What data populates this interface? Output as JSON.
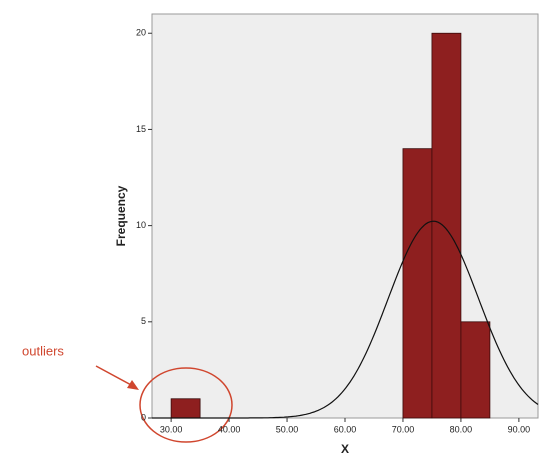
{
  "chart_data": {
    "type": "histogram",
    "x_label": "X",
    "y_label": "Frequency",
    "bins": [
      30,
      35,
      40,
      45,
      50,
      55,
      60,
      65,
      70,
      75,
      80,
      85
    ],
    "values": [
      1,
      0,
      0,
      0,
      0,
      0,
      0,
      0,
      14,
      20,
      5
    ],
    "color": "#8e1f1f",
    "xlim": [
      26.7,
      93.3
    ],
    "ylim": [
      0,
      21
    ],
    "xticks": [
      {
        "value": 30,
        "label": "30.00"
      },
      {
        "value": 40,
        "label": "40.00"
      },
      {
        "value": 50,
        "label": "50.00"
      },
      {
        "value": 60,
        "label": "60.00"
      },
      {
        "value": 70,
        "label": "70.00"
      },
      {
        "value": 80,
        "label": "80.00"
      },
      {
        "value": 90,
        "label": "90.00"
      }
    ],
    "yticks": [
      0,
      5,
      10,
      15,
      20
    ],
    "curve": {
      "mean": 75.25,
      "sd": 7.8
    },
    "annotation": "outliers",
    "annotation_color": "#d0462e"
  }
}
